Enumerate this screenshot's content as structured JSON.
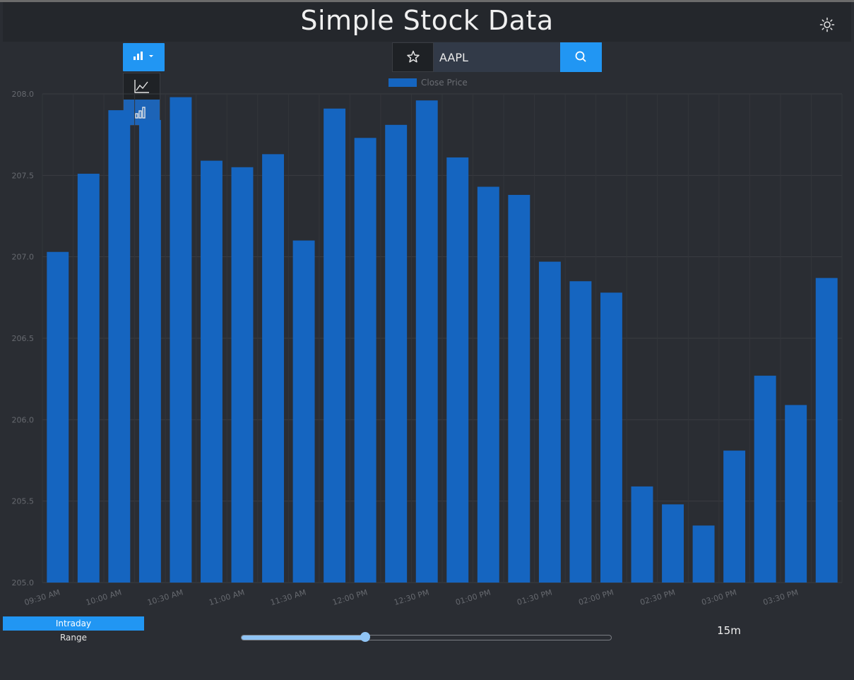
{
  "header": {
    "title": "Simple Stock Data",
    "theme_icon": "sun-icon"
  },
  "toolbar": {
    "chart_type_icon": "bar-chart-icon",
    "chart_type_options": [
      "line-chart-icon",
      "bar-chart-icon"
    ],
    "selected_chart_type": "bar",
    "favorite_icon": "star-icon",
    "search_value": "AAPL",
    "search_icon": "search-icon"
  },
  "chart_data": {
    "type": "bar",
    "categories": [
      "09:30 AM",
      "",
      "10:00 AM",
      "",
      "10:30 AM",
      "",
      "11:00 AM",
      "",
      "11:30 AM",
      "",
      "12:00 PM",
      "",
      "12:30 PM",
      "",
      "01:00 PM",
      "",
      "01:30 PM",
      "",
      "02:00 PM",
      "",
      "02:30 PM",
      "",
      "03:00 PM",
      "",
      "03:30 PM",
      ""
    ],
    "series": [
      {
        "name": "Close Price",
        "values": [
          207.03,
          207.51,
          207.9,
          207.84,
          207.98,
          207.59,
          207.55,
          207.63,
          207.1,
          207.91,
          207.73,
          207.81,
          207.96,
          207.61,
          207.43,
          207.38,
          206.97,
          206.85,
          206.78,
          205.59,
          205.48,
          205.35,
          205.81,
          206.27,
          206.09,
          206.87
        ]
      }
    ],
    "ylim": [
      205.0,
      208.0
    ],
    "y_ticks": [
      "205.0",
      "205.5",
      "206.0",
      "206.5",
      "207.0",
      "207.5",
      "208.0"
    ],
    "legend_position": "top-center",
    "grid": true,
    "bar_color": "#1565c0"
  },
  "controls": {
    "range_tabs": [
      "Intraday",
      "Range"
    ],
    "active_tab": "Intraday",
    "interval_slider_fraction": 0.336,
    "interval_label": "15m"
  },
  "colors": {
    "accent": "#2196f3",
    "bar": "#1565c0",
    "background": "#2a2d33"
  }
}
